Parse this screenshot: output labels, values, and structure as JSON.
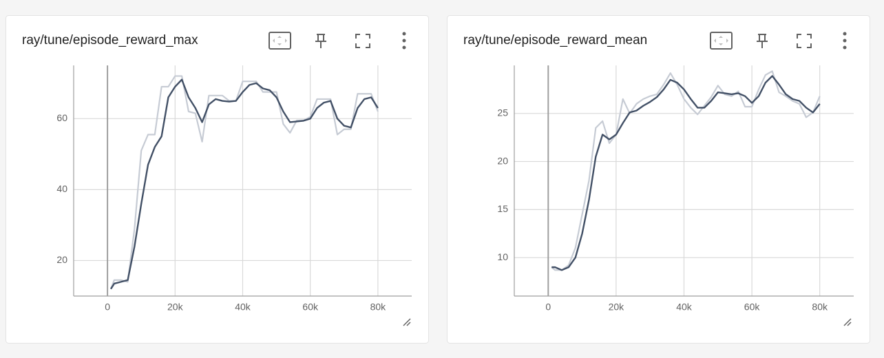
{
  "chart_data": [
    {
      "type": "line",
      "title": "ray/tune/episode_reward_max",
      "x": [
        1000,
        2000,
        4000,
        6000,
        8000,
        10000,
        12000,
        14000,
        16000,
        18000,
        20000,
        22000,
        24000,
        26000,
        28000,
        30000,
        32000,
        34000,
        36000,
        38000,
        40000,
        42000,
        44000,
        46000,
        48000,
        50000,
        52000,
        54000,
        56000,
        58000,
        60000,
        62000,
        64000,
        66000,
        68000,
        70000,
        72000,
        74000,
        76000,
        78000,
        80000
      ],
      "series": [
        {
          "color": "#c6cbd4",
          "values": [
            12,
            14.5,
            14.5,
            14,
            29,
            51,
            55.5,
            55.5,
            69,
            69,
            72,
            72,
            62,
            61.5,
            53.5,
            66.5,
            66.5,
            66.5,
            65,
            65,
            70.5,
            70.5,
            70.5,
            67.5,
            67.5,
            67.5,
            58.5,
            56,
            59.5,
            59.5,
            60.5,
            65.5,
            65.5,
            65.5,
            55.5,
            57,
            57,
            67,
            67,
            67,
            62
          ]
        },
        {
          "color": "#425066",
          "values": [
            12,
            13.5,
            14,
            14.5,
            24,
            36,
            47,
            52,
            55,
            66,
            69,
            71,
            66,
            63,
            59,
            64,
            65.5,
            65,
            64.8,
            65,
            67.5,
            69.5,
            70,
            68.5,
            68,
            66,
            62,
            59,
            59.2,
            59.4,
            60,
            63,
            64.5,
            65,
            60,
            58,
            57.5,
            63,
            65.5,
            66,
            63
          ]
        }
      ],
      "xlim": [
        -10000,
        90000
      ],
      "ylim": [
        10,
        75
      ],
      "xticks": [
        0,
        {
          "value": 20000,
          "label": "20k"
        },
        {
          "value": 40000,
          "label": "40k"
        },
        {
          "value": 60000,
          "label": "60k"
        },
        {
          "value": 80000,
          "label": "80k"
        }
      ],
      "yticks": [
        20,
        40,
        60
      ],
      "grid": true
    },
    {
      "type": "line",
      "title": "ray/tune/episode_reward_mean",
      "x": [
        1000,
        2000,
        4000,
        6000,
        8000,
        10000,
        12000,
        14000,
        16000,
        18000,
        20000,
        22000,
        24000,
        26000,
        28000,
        30000,
        32000,
        34000,
        36000,
        38000,
        40000,
        42000,
        44000,
        46000,
        48000,
        50000,
        52000,
        54000,
        56000,
        58000,
        60000,
        62000,
        64000,
        66000,
        68000,
        70000,
        72000,
        74000,
        76000,
        78000,
        80000
      ],
      "series": [
        {
          "color": "#c6cbd4",
          "values": [
            9,
            8.7,
            8.7,
            9.2,
            11,
            14.5,
            18,
            23.5,
            24.2,
            21.9,
            22.8,
            26.5,
            25,
            26,
            26.5,
            26.8,
            27,
            28,
            29.2,
            28,
            26.5,
            25.6,
            24.9,
            25.8,
            26.7,
            27.9,
            27,
            26.8,
            27.3,
            25.7,
            25.7,
            27.5,
            29,
            29.4,
            27.2,
            26.8,
            26.3,
            26,
            24.6,
            25.1,
            26.8
          ]
        },
        {
          "color": "#425066",
          "values": [
            9,
            9,
            8.7,
            9,
            10,
            12.5,
            16,
            20.5,
            22.8,
            22.3,
            22.8,
            24,
            25.1,
            25.3,
            25.8,
            26.2,
            26.7,
            27.5,
            28.5,
            28.2,
            27.5,
            26.5,
            25.6,
            25.6,
            26.3,
            27.2,
            27.1,
            27,
            27.1,
            26.8,
            26.1,
            26.8,
            28.2,
            28.9,
            28,
            27,
            26.5,
            26.3,
            25.6,
            25.1,
            26
          ]
        }
      ],
      "xlim": [
        -10000,
        90000
      ],
      "ylim": [
        6,
        30
      ],
      "xticks": [
        0,
        {
          "value": 20000,
          "label": "20k"
        },
        {
          "value": 40000,
          "label": "40k"
        },
        {
          "value": 60000,
          "label": "60k"
        },
        {
          "value": 80000,
          "label": "80k"
        }
      ],
      "yticks": [
        10,
        15,
        20,
        25
      ],
      "grid": true
    }
  ]
}
